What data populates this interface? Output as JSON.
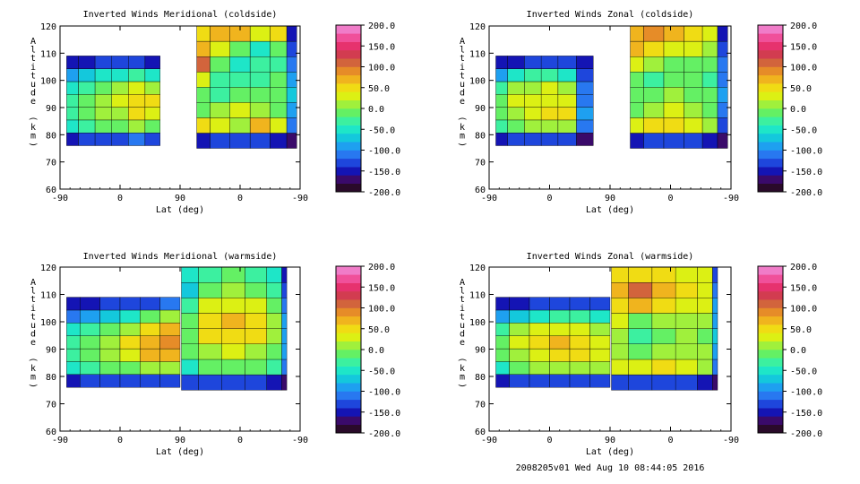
{
  "colors": {
    "scale": [
      "#2a0a2a",
      "#3a0a6a",
      "#1414b4",
      "#1e46dc",
      "#2878f0",
      "#1ea0f0",
      "#14c8dc",
      "#1ee6c8",
      "#3cf0a0",
      "#64f064",
      "#a0f03c",
      "#dcf014",
      "#f0dc14",
      "#f0b41e",
      "#e68c28",
      "#d2643c",
      "#d23c50",
      "#e6326e",
      "#f0509a",
      "#f07cc8"
    ]
  },
  "colorbar": {
    "ticks": [
      "200.0",
      "150.0",
      "100.0",
      "50.0",
      "0.0",
      "-50.0",
      "-100.0",
      "-150.0",
      "-200.0"
    ]
  },
  "footer": "2008205v01 Wed Aug 10 08:44:05 2016",
  "chart_data": [
    {
      "type": "heatmap",
      "title": "Inverted Winds Meridional (coldside)",
      "xlabel": "Lat (deg)",
      "ylabel": "Altitude (km)",
      "xticks": [
        "-90",
        "0",
        "90",
        "0",
        "-90"
      ],
      "yticks": [
        "60",
        "70",
        "80",
        "90",
        "100",
        "110",
        "120"
      ],
      "ylim": [
        60,
        120
      ],
      "zlim": [
        -200,
        200
      ],
      "regions": [
        {
          "lat_from": -80,
          "lat_to": 60,
          "alt_bottom": 76,
          "alt_top": 109,
          "columns": [
            {
              "lat": -75,
              "cells": [
                -150,
                -60,
                -40,
                -30,
                -50,
                -100,
                -160
              ]
            },
            {
              "lat": -50,
              "cells": [
                -140,
                -40,
                -20,
                -10,
                -30,
                -80,
                -150
              ]
            },
            {
              "lat": -25,
              "cells": [
                -140,
                -20,
                0,
                10,
                -10,
                -60,
                -140
              ]
            },
            {
              "lat": 0,
              "cells": [
                -130,
                -10,
                10,
                20,
                0,
                -50,
                -140
              ]
            },
            {
              "lat": 25,
              "cells": [
                -120,
                0,
                40,
                50,
                20,
                -40,
                -140
              ]
            },
            {
              "lat": 50,
              "cells": [
                -140,
                -20,
                20,
                40,
                10,
                -60,
                -150
              ]
            }
          ]
        },
        {
          "lat_from": 115,
          "lat_to": 265,
          "alt_bottom": 75,
          "alt_top": 120,
          "columns": [
            {
              "lat": 120,
              "cells": [
                -160,
                40,
                -10,
                -20,
                20,
                110,
                60,
                40
              ]
            },
            {
              "lat": 150,
              "cells": [
                -140,
                20,
                0,
                -30,
                -40,
                -10,
                20,
                70
              ]
            },
            {
              "lat": 180,
              "cells": [
                -140,
                10,
                20,
                -20,
                -40,
                -60,
                -20,
                60
              ]
            },
            {
              "lat": 210,
              "cells": [
                -140,
                60,
                0,
                -20,
                -30,
                -40,
                -60,
                30
              ]
            },
            {
              "lat": 240,
              "cells": [
                -150,
                20,
                -10,
                -10,
                -20,
                -30,
                -10,
                40
              ]
            },
            {
              "lat": 260,
              "cells": [
                -170,
                -120,
                -100,
                -80,
                -90,
                -110,
                -130,
                -150
              ]
            }
          ]
        }
      ]
    },
    {
      "type": "heatmap",
      "title": "Inverted Winds Zonal (coldside)",
      "xlabel": "Lat (deg)",
      "ylabel": "Altitude (km)",
      "xticks": [
        "-90",
        "0",
        "90",
        "0",
        "-90"
      ],
      "yticks": [
        "60",
        "70",
        "80",
        "90",
        "100",
        "110",
        "120"
      ],
      "ylim": [
        60,
        120
      ],
      "zlim": [
        -200,
        200
      ],
      "regions": [
        {
          "lat_from": -80,
          "lat_to": 65,
          "alt_bottom": 76,
          "alt_top": 109,
          "columns": [
            {
              "lat": -75,
              "cells": [
                -150,
                -40,
                -20,
                -10,
                -30,
                -90,
                -160
              ]
            },
            {
              "lat": -50,
              "cells": [
                -140,
                -20,
                10,
                20,
                0,
                -60,
                -150
              ]
            },
            {
              "lat": -25,
              "cells": [
                -140,
                0,
                20,
                30,
                10,
                -40,
                -140
              ]
            },
            {
              "lat": 0,
              "cells": [
                -130,
                10,
                50,
                30,
                20,
                -40,
                -140
              ]
            },
            {
              "lat": 25,
              "cells": [
                -130,
                10,
                40,
                20,
                10,
                -50,
                -140
              ]
            },
            {
              "lat": 55,
              "cells": [
                -170,
                -120,
                -90,
                -110,
                -120,
                -140,
                -160
              ]
            }
          ]
        },
        {
          "lat_from": 120,
          "lat_to": 265,
          "alt_bottom": 75,
          "alt_top": 120,
          "columns": [
            {
              "lat": 125,
              "cells": [
                -150,
                30,
                -10,
                -20,
                -10,
                20,
                60,
                70
              ]
            },
            {
              "lat": 155,
              "cells": [
                -140,
                40,
                10,
                -10,
                -30,
                10,
                40,
                80
              ]
            },
            {
              "lat": 185,
              "cells": [
                -140,
                50,
                20,
                0,
                -20,
                -10,
                30,
                70
              ]
            },
            {
              "lat": 215,
              "cells": [
                -140,
                30,
                10,
                -10,
                -10,
                -20,
                20,
                40
              ]
            },
            {
              "lat": 240,
              "cells": [
                -150,
                10,
                -10,
                -20,
                -30,
                -20,
                10,
                30
              ]
            },
            {
              "lat": 260,
              "cells": [
                -170,
                -130,
                -110,
                -100,
                -110,
                -120,
                -140,
                -160
              ]
            }
          ]
        }
      ]
    },
    {
      "type": "heatmap",
      "title": "Inverted Winds Meridional (warmside)",
      "xlabel": "Lat (deg)",
      "ylabel": "Altitude (km)",
      "xticks": [
        "-90",
        "0",
        "90",
        "0",
        "-90"
      ],
      "yticks": [
        "60",
        "70",
        "80",
        "90",
        "100",
        "110",
        "120"
      ],
      "ylim": [
        60,
        120
      ],
      "zlim": [
        -200,
        200
      ],
      "regions": [
        {
          "lat_from": -80,
          "lat_to": 90,
          "alt_bottom": 76,
          "alt_top": 109,
          "columns": [
            {
              "lat": -75,
              "cells": [
                -150,
                -60,
                -40,
                -30,
                -60,
                -110,
                -160
              ]
            },
            {
              "lat": -45,
              "cells": [
                -140,
                -40,
                -20,
                -10,
                -30,
                -90,
                -150
              ]
            },
            {
              "lat": -15,
              "cells": [
                -140,
                -20,
                0,
                10,
                -10,
                -70,
                -140
              ]
            },
            {
              "lat": 15,
              "cells": [
                -130,
                -10,
                30,
                40,
                10,
                -50,
                -140
              ]
            },
            {
              "lat": 45,
              "cells": [
                -130,
                0,
                60,
                70,
                50,
                -20,
                -130
              ]
            },
            {
              "lat": 75,
              "cells": [
                -130,
                10,
                70,
                80,
                60,
                0,
                -120
              ]
            }
          ]
        },
        {
          "lat_from": 92,
          "lat_to": 250,
          "alt_bottom": 75,
          "alt_top": 120,
          "columns": [
            {
              "lat": 100,
              "cells": [
                -140,
                -50,
                -20,
                -10,
                -10,
                -40,
                -80,
                -60
              ]
            },
            {
              "lat": 135,
              "cells": [
                -140,
                -20,
                10,
                40,
                40,
                20,
                -10,
                -30
              ]
            },
            {
              "lat": 170,
              "cells": [
                -140,
                -10,
                30,
                50,
                60,
                30,
                0,
                -20
              ]
            },
            {
              "lat": 205,
              "cells": [
                -140,
                -20,
                10,
                40,
                50,
                20,
                -10,
                -30
              ]
            },
            {
              "lat": 235,
              "cells": [
                -150,
                -40,
                -10,
                0,
                10,
                -10,
                -30,
                -50
              ]
            },
            {
              "lat": 250,
              "cells": [
                -170,
                -120,
                -100,
                -90,
                -100,
                -110,
                -130,
                -150
              ]
            }
          ]
        }
      ]
    },
    {
      "type": "heatmap",
      "title": "Inverted Winds Zonal (warmside)",
      "xlabel": "Lat (deg)",
      "ylabel": "Altitude (km)",
      "xticks": [
        "-90",
        "0",
        "90",
        "0",
        "-90"
      ],
      "yticks": [
        "60",
        "70",
        "80",
        "90",
        "100",
        "110",
        "120"
      ],
      "ylim": [
        60,
        120
      ],
      "zlim": [
        -200,
        200
      ],
      "regions": [
        {
          "lat_from": -80,
          "lat_to": 90,
          "alt_bottom": 76,
          "alt_top": 109,
          "columns": [
            {
              "lat": -75,
              "cells": [
                -150,
                -50,
                -20,
                -10,
                -30,
                -100,
                -160
              ]
            },
            {
              "lat": -45,
              "cells": [
                -140,
                -20,
                10,
                20,
                0,
                -70,
                -150
              ]
            },
            {
              "lat": -15,
              "cells": [
                -140,
                0,
                30,
                40,
                20,
                -50,
                -140
              ]
            },
            {
              "lat": 15,
              "cells": [
                -130,
                10,
                50,
                60,
                30,
                -30,
                -140
              ]
            },
            {
              "lat": 45,
              "cells": [
                -130,
                10,
                40,
                50,
                20,
                -40,
                -140
              ]
            },
            {
              "lat": 75,
              "cells": [
                -140,
                0,
                20,
                30,
                10,
                -50,
                -140
              ]
            }
          ]
        },
        {
          "lat_from": 92,
          "lat_to": 250,
          "alt_bottom": 75,
          "alt_top": 120,
          "columns": [
            {
              "lat": 100,
              "cells": [
                -140,
                20,
                10,
                0,
                20,
                50,
                60,
                40
              ]
            },
            {
              "lat": 135,
              "cells": [
                -140,
                30,
                -10,
                -30,
                -10,
                60,
                100,
                50
              ]
            },
            {
              "lat": 170,
              "cells": [
                -140,
                40,
                0,
                -20,
                0,
                40,
                60,
                50
              ]
            },
            {
              "lat": 205,
              "cells": [
                -140,
                30,
                10,
                0,
                10,
                30,
                40,
                30
              ]
            },
            {
              "lat": 235,
              "cells": [
                -150,
                10,
                0,
                -10,
                0,
                20,
                30,
                20
              ]
            },
            {
              "lat": 250,
              "cells": [
                -170,
                -110,
                -90,
                -80,
                -90,
                -100,
                -120,
                -140
              ]
            }
          ]
        }
      ]
    }
  ]
}
